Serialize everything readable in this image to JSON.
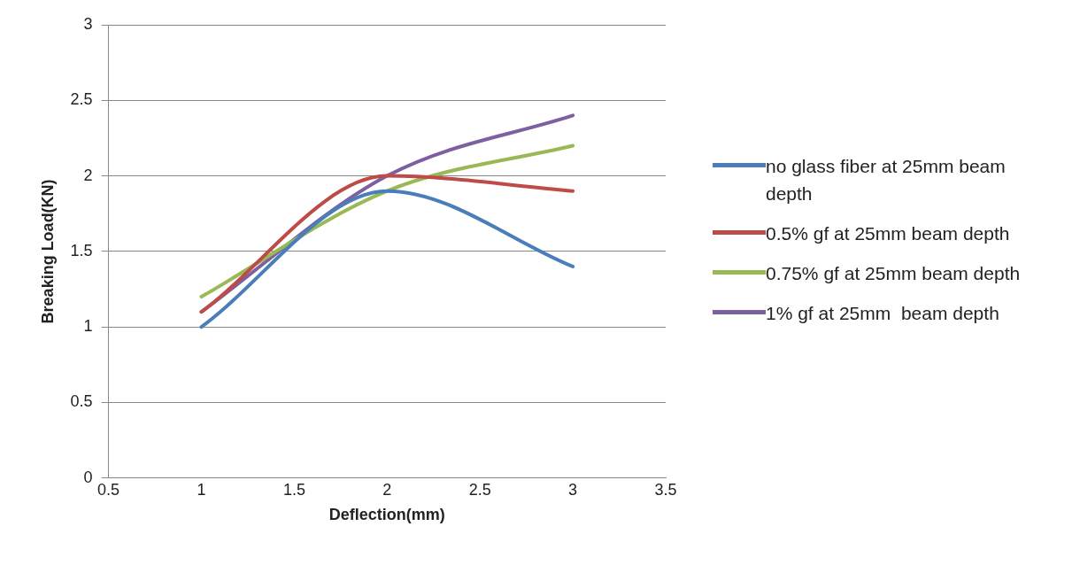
{
  "chart_data": {
    "type": "line",
    "xlabel": "Deflection(mm)",
    "ylabel": "Breaking Load(KN)",
    "xlim": [
      0.5,
      3.5
    ],
    "xticks": [
      0.5,
      1,
      1.5,
      2,
      2.5,
      3,
      3.5
    ],
    "ylim": [
      0,
      3
    ],
    "yticks": [
      0,
      0.5,
      1,
      1.5,
      2,
      2.5,
      3
    ],
    "x": [
      1,
      2,
      3
    ],
    "grid": "y",
    "legend": "right",
    "marker": "none",
    "series": [
      {
        "name": "no glass fiber at 25mm beam depth",
        "color": "#4a7ebb",
        "values": [
          1.0,
          1.9,
          1.4
        ]
      },
      {
        "name": "0.5% gf at 25mm beam depth",
        "color": "#be4b48",
        "values": [
          1.1,
          2.0,
          1.9
        ]
      },
      {
        "name": "0.75% gf at 25mm beam depth",
        "color": "#98b954",
        "values": [
          1.2,
          1.9,
          2.2
        ]
      },
      {
        "name": "1% gf at 25mm  beam depth",
        "color": "#7d60a0",
        "values": [
          1.1,
          2.0,
          2.4
        ]
      }
    ]
  }
}
